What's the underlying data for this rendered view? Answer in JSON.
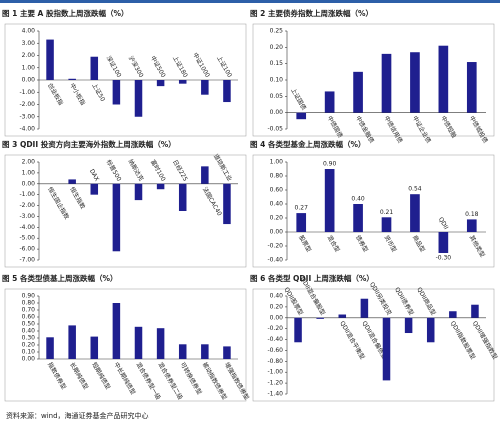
{
  "chart_data": [
    {
      "type": "bar",
      "title": "图 1 主要 A 股指数上周涨跌幅（%）",
      "color": "#1f1f8f",
      "categories": [
        "创业板指",
        "中小板指",
        "上证50",
        "深证100",
        "沪深300",
        "中证500",
        "上证180",
        "中证1000",
        "上证100"
      ],
      "values": [
        3.3,
        0.1,
        1.9,
        -2.0,
        -3.0,
        -0.5,
        -0.3,
        -1.2,
        -1.8
      ],
      "ylim": [
        -4,
        4
      ],
      "yticks": [
        {
          "value": 4,
          "label": "4.00"
        },
        {
          "value": 3,
          "label": "3.00"
        },
        {
          "value": 2,
          "label": "2.00"
        },
        {
          "value": 1,
          "label": "1.00"
        },
        {
          "value": 0,
          "label": "0.00"
        },
        {
          "value": -1,
          "label": "-1.00"
        },
        {
          "value": -2,
          "label": "-2.00"
        },
        {
          "value": -3,
          "label": "-3.00"
        },
        {
          "value": -4,
          "label": "-4.00"
        }
      ]
    },
    {
      "type": "bar",
      "title": "图 2 主要债券指数上周涨跌幅（%）",
      "color": "#1f1f8f",
      "categories": [
        "上证国债",
        "中债国债",
        "中债金融债",
        "中债信用债",
        "中证企业债",
        "中债短融",
        "中债城投债"
      ],
      "values": [
        -0.02,
        0.065,
        0.125,
        0.18,
        0.185,
        0.205,
        0.155
      ],
      "ylim": [
        -0.05,
        0.25
      ],
      "yticks": [
        0.25,
        {
          "value": 0.2,
          "label": "0.20"
        },
        0.15,
        {
          "value": 0.1,
          "label": "0.10"
        },
        0.05,
        {
          "value": 0,
          "label": "0.00"
        },
        -0.05
      ]
    },
    {
      "type": "bar",
      "title": "图 3 QDII 投资方向主要海外指数上周涨跌幅（%）",
      "color": "#1f1f8f",
      "categories": [
        "恒生国企指数",
        "恒生指数",
        "DAX",
        "标普500",
        "纳斯达克",
        "富时100",
        "日经225",
        "法国CAC40",
        "道琼斯工业"
      ],
      "values": [
        0.0,
        0.4,
        -1.0,
        -6.2,
        -1.5,
        -0.5,
        -2.5,
        1.6,
        -3.7
      ],
      "ylim": [
        -7,
        2
      ],
      "yticks": [
        {
          "value": 2,
          "label": "2.00"
        },
        {
          "value": 1,
          "label": "1.00"
        },
        {
          "value": 0,
          "label": "0.00"
        },
        {
          "value": -1,
          "label": "-1.00"
        },
        {
          "value": -2,
          "label": "-2.00"
        },
        {
          "value": -3,
          "label": "-3.00"
        },
        {
          "value": -4,
          "label": "-4.00"
        },
        {
          "value": -5,
          "label": "-5.00"
        },
        {
          "value": -6,
          "label": "-6.00"
        },
        {
          "value": -7,
          "label": "-7.00"
        }
      ]
    },
    {
      "type": "bar",
      "title": "图 4 各类型基金上周涨跌幅（%）",
      "color": "#1f1f8f",
      "categories": [
        "股票型",
        "混合型",
        "债券型",
        "货币型",
        "商品型",
        "QDII",
        "其他类型"
      ],
      "values": [
        0.27,
        0.9,
        0.4,
        0.21,
        0.54,
        -0.3,
        0.18
      ],
      "value_labels": [
        "0.27",
        "0.90",
        "0.40",
        "0.21",
        "0.54",
        "-0.30",
        "0.18"
      ],
      "ylim": [
        -0.4,
        1
      ],
      "yticks": [
        {
          "value": 1,
          "label": "1.00"
        },
        {
          "value": 0.8,
          "label": "0.80"
        },
        {
          "value": 0.6,
          "label": "0.60"
        },
        {
          "value": 0.4,
          "label": "0.40"
        },
        {
          "value": 0.2,
          "label": "0.20"
        },
        {
          "value": 0,
          "label": "0.00"
        },
        {
          "value": -0.2,
          "label": "-0.20"
        },
        {
          "value": -0.4,
          "label": "-0.40"
        }
      ]
    },
    {
      "type": "bar",
      "title": "图 5 各类型债基上周涨跌幅（%）",
      "color": "#1f1f8f",
      "categories": [
        "指数债券型",
        "长期纯债型",
        "短期纯债型",
        "中长期纯债型",
        "混合债券型一级",
        "混合债券型二级",
        "可转换债券型",
        "被动指数债券型",
        "增强指数债券型"
      ],
      "values": [
        0.31,
        0.48,
        0.32,
        0.8,
        0.46,
        0.44,
        0.21,
        0.21,
        0.18
      ],
      "ylim": [
        0,
        0.9
      ],
      "yticks": [
        {
          "value": 0.9,
          "label": "0.90"
        },
        {
          "value": 0.8,
          "label": "0.80"
        },
        {
          "value": 0.7,
          "label": "0.70"
        },
        {
          "value": 0.6,
          "label": "0.60"
        },
        {
          "value": 0.5,
          "label": "0.50"
        },
        {
          "value": 0.4,
          "label": "0.40"
        },
        {
          "value": 0.3,
          "label": "0.30"
        },
        {
          "value": 0.2,
          "label": "0.20"
        },
        {
          "value": 0.1,
          "label": "0.10"
        },
        {
          "value": 0,
          "label": "0.00"
        }
      ]
    },
    {
      "type": "bar",
      "title": "图 6 各类型 QDII 上周涨跌幅（%）",
      "color": "#1f1f8f",
      "categories": [
        "QDII股票型",
        "QDII混合偏股型",
        "QDII混合平衡型",
        "QDII混合偏债型",
        "QDII另类投资",
        "QDII债券型",
        "QDII商品型",
        "QDII指数股票型",
        "QDII增强指数型"
      ],
      "values": [
        -0.45,
        -0.02,
        0.06,
        0.35,
        -1.15,
        -0.28,
        -0.45,
        0.12,
        0.24
      ],
      "ylim": [
        -1.4,
        0.4
      ],
      "yticks": [
        {
          "value": 0.4,
          "label": "0.40"
        },
        {
          "value": 0.2,
          "label": "0.20"
        },
        {
          "value": 0,
          "label": "0.00"
        },
        {
          "value": -0.2,
          "label": "-0.20"
        },
        {
          "value": -0.4,
          "label": "-0.40"
        },
        {
          "value": -0.6,
          "label": "-0.60"
        },
        {
          "value": -0.8,
          "label": "-0.80"
        },
        {
          "value": -1,
          "label": "-1.00"
        },
        {
          "value": -1.2,
          "label": "-1.20"
        },
        {
          "value": -1.4,
          "label": "-1.40"
        }
      ]
    }
  ],
  "source": "资料来源：wind，海通证券基金产品研究中心"
}
